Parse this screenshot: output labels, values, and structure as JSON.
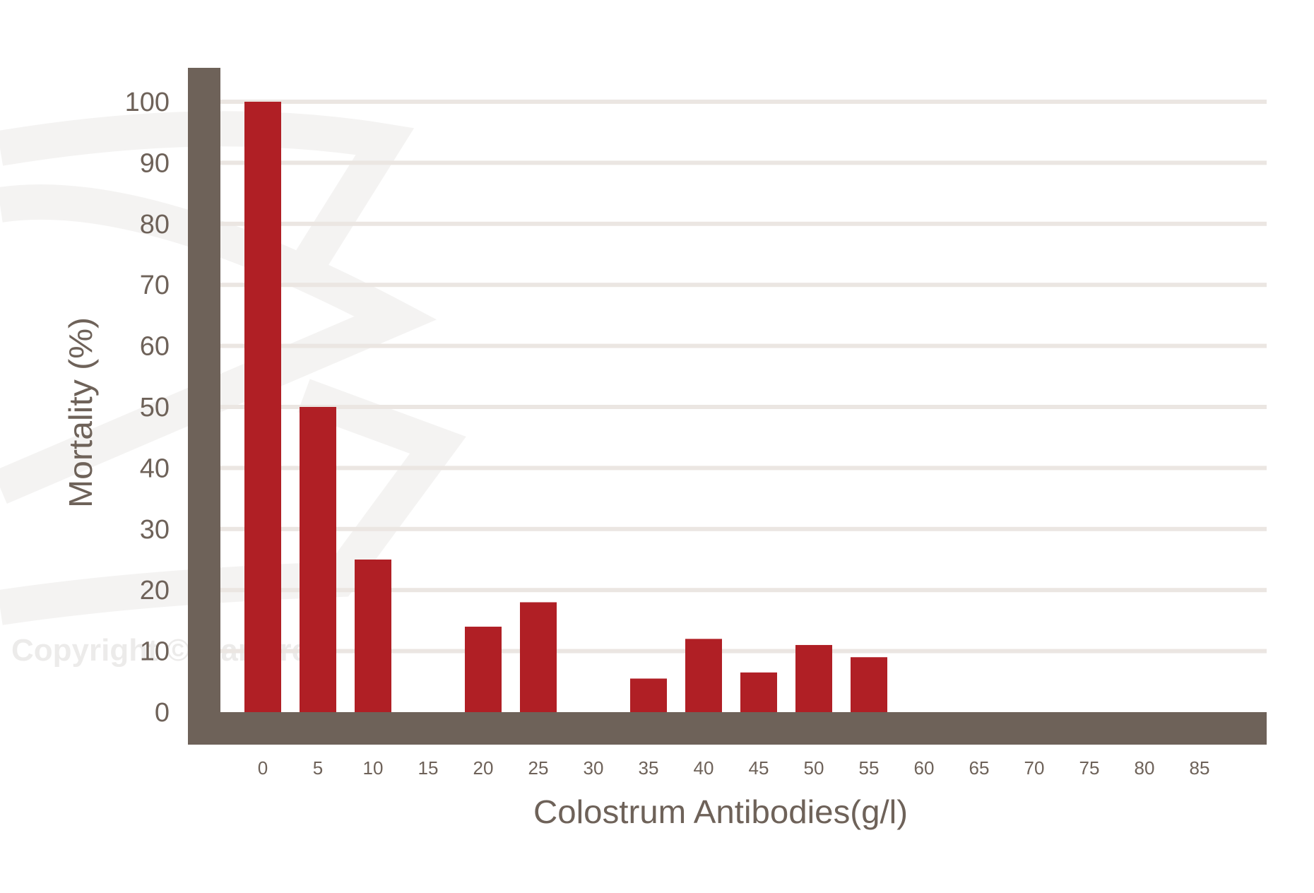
{
  "chart_data": {
    "type": "bar",
    "xlabel": "Colostrum Antibodies(g/l)",
    "ylabel": "Mortality (%)",
    "categories": [
      "0",
      "5",
      "10",
      "15",
      "20",
      "25",
      "30",
      "35",
      "40",
      "45",
      "50",
      "55",
      "60",
      "65",
      "70",
      "75",
      "80",
      "85"
    ],
    "values": [
      100,
      50,
      25,
      null,
      14,
      18,
      null,
      5.5,
      12,
      6.5,
      11,
      9,
      null,
      null,
      null,
      null,
      null,
      null
    ],
    "yticks": [
      "0",
      "10",
      "20",
      "30",
      "40",
      "50",
      "60",
      "70",
      "80",
      "90",
      "100"
    ],
    "ylim": [
      0,
      100
    ],
    "grid": true,
    "colors": {
      "bar": "#b01f25",
      "axis": "#6e6259",
      "grid": "#ebe6e2",
      "text": "#6e6259"
    }
  },
  "watermark": "Copyright © DanBred"
}
